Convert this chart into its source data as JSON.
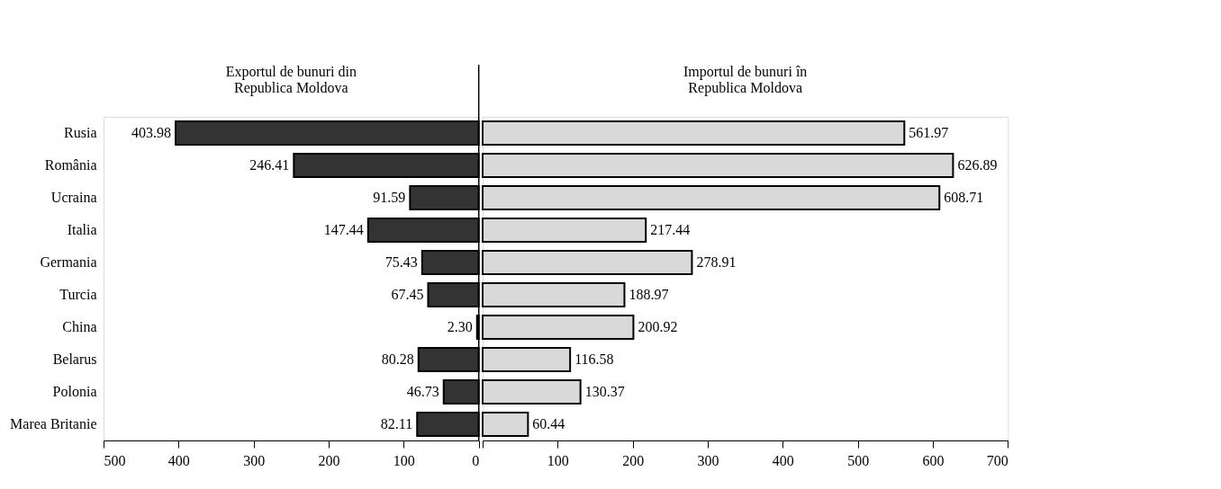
{
  "chart_data": [
    {
      "type": "bar",
      "orientation": "horizontal",
      "categories": [
        "Rusia",
        "România",
        "Ucraina",
        "Italia",
        "Germania",
        "Turcia",
        "China",
        "Belarus",
        "Polonia",
        "Marea Britanie"
      ],
      "series": [
        {
          "name": "Exportul de bunuri din\nRepublica Moldova",
          "color": "#333333",
          "values": [
            403.98,
            246.41,
            91.59,
            147.44,
            75.43,
            67.45,
            2.3,
            80.28,
            46.73,
            82.11
          ],
          "value_labels": [
            "403.98",
            "246.41",
            "91.59",
            "147.44",
            "75.43",
            "67.45",
            "2.30",
            "80.28",
            "46.73",
            "82.11"
          ]
        }
      ],
      "xlim": [
        500,
        0
      ],
      "xticks": [
        500,
        400,
        300,
        200,
        100,
        0
      ],
      "ref_lines": [
        {
          "axis": "x",
          "value": 0,
          "color": "#000000"
        }
      ],
      "grid": false,
      "legend": false
    },
    {
      "type": "bar",
      "orientation": "horizontal",
      "categories": [
        null,
        null,
        null,
        null,
        null,
        null,
        null,
        null,
        null,
        null
      ],
      "series": [
        {
          "name": "Importul de bunuri în\nRepublica Moldova",
          "color": "#d9d9d9",
          "values": [
            561.97,
            626.89,
            608.71,
            217.44,
            278.91,
            188.97,
            200.92,
            116.58,
            130.37,
            60.44
          ]
        }
      ],
      "data_labels": true,
      "xlim": [
        0,
        700
      ],
      "xticks": [
        {
          "value": 0,
          "label": null
        },
        100,
        200,
        300,
        400,
        500,
        600,
        700
      ],
      "tick_labels": "x",
      "grid": false,
      "legend": false
    }
  ]
}
